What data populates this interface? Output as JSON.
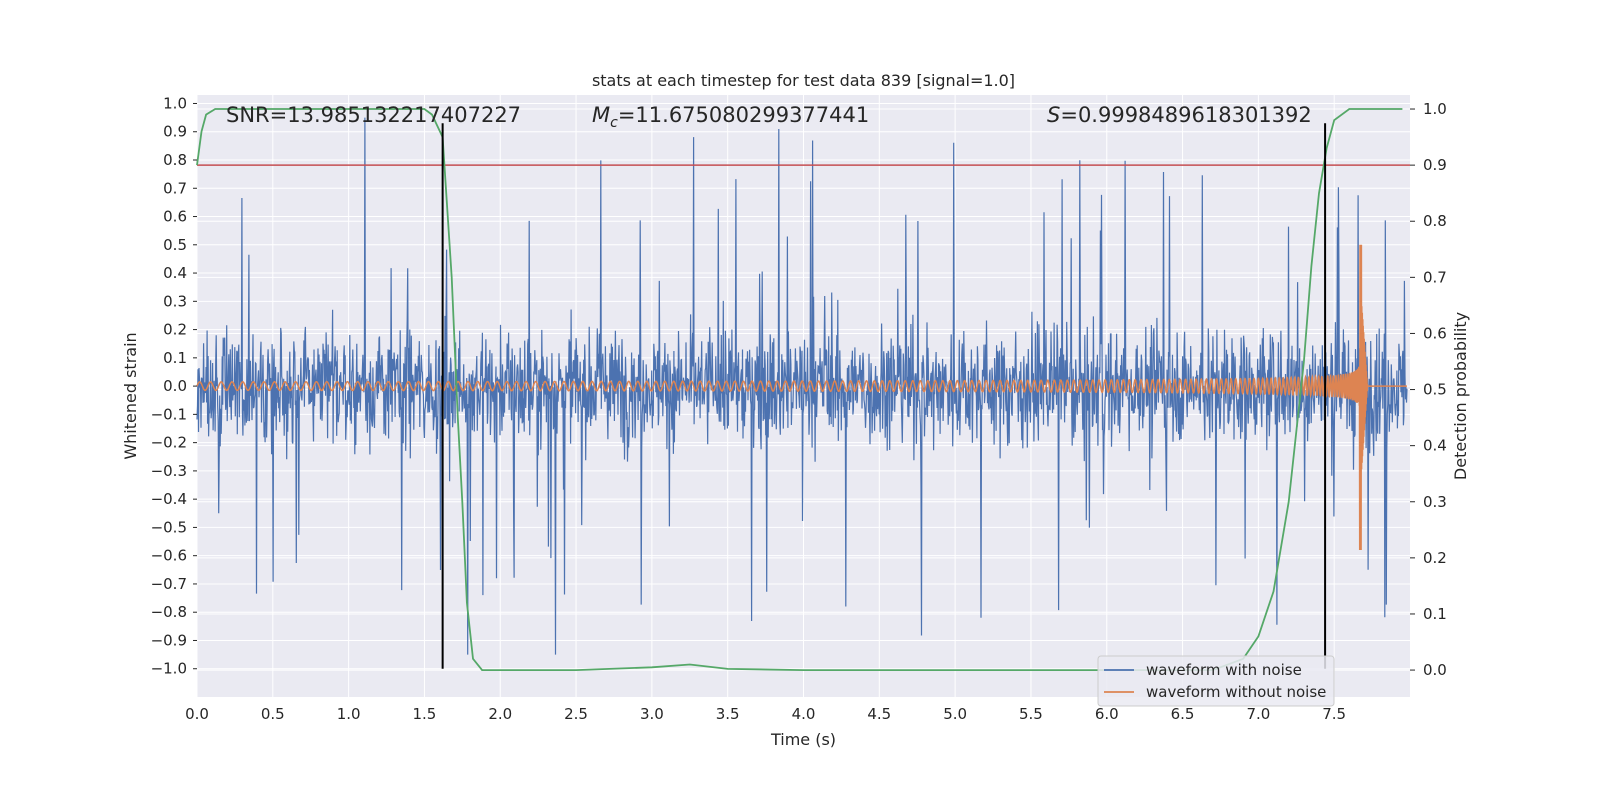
{
  "chart_data": {
    "type": "line",
    "title": "stats at each timestep for test data 839 [signal=1.0]",
    "xlabel": "Time (s)",
    "ylabel": "Whitened strain",
    "y2label": "Detection probability",
    "xlim": [
      0.0,
      8.0
    ],
    "ylim": [
      -1.1,
      1.03
    ],
    "y2lim": [
      -0.048,
      1.025
    ],
    "x_ticks": [
      0.0,
      0.5,
      1.0,
      1.5,
      2.0,
      2.5,
      3.0,
      3.5,
      4.0,
      4.5,
      5.0,
      5.5,
      6.0,
      6.5,
      7.0,
      7.5
    ],
    "x_tick_labels": [
      "0.0",
      "0.5",
      "1.0",
      "1.5",
      "2.0",
      "2.5",
      "3.0",
      "3.5",
      "4.0",
      "4.5",
      "5.0",
      "5.5",
      "6.0",
      "6.5",
      "7.0",
      "7.5"
    ],
    "y_ticks": [
      -1.0,
      -0.9,
      -0.8,
      -0.7,
      -0.6,
      -0.5,
      -0.4,
      -0.3,
      -0.2,
      -0.1,
      0.0,
      0.1,
      0.2,
      0.3,
      0.4,
      0.5,
      0.6,
      0.7,
      0.8,
      0.9,
      1.0
    ],
    "y_tick_labels": [
      "−1.0",
      "−0.9",
      "−0.8",
      "−0.7",
      "−0.6",
      "−0.5",
      "−0.4",
      "−0.3",
      "−0.2",
      "−0.1",
      "0.0",
      "0.1",
      "0.2",
      "0.3",
      "0.4",
      "0.5",
      "0.6",
      "0.7",
      "0.8",
      "0.9",
      "1.0"
    ],
    "y2_ticks": [
      0.0,
      0.1,
      0.2,
      0.3,
      0.4,
      0.5,
      0.6,
      0.7,
      0.8,
      0.9,
      1.0
    ],
    "y2_tick_labels": [
      "0.0",
      "0.1",
      "0.2",
      "0.3",
      "0.4",
      "0.5",
      "0.6",
      "0.7",
      "0.8",
      "0.9",
      "1.0"
    ],
    "grid": true,
    "legend_position": "bottom-right",
    "annotations": {
      "snr": "SNR=13.985132217407227",
      "mc_symbol": "M",
      "mc_sub": "c",
      "mc_value": "=11.675080299377441",
      "s_symbol": "S",
      "s_value": "=0.9998489618301392"
    },
    "series": [
      {
        "name": "waveform with noise",
        "color": "#4c72b0",
        "axis": "left",
        "kind": "noise_strain",
        "typical_envelope": 0.35,
        "max_abs": 0.95
      },
      {
        "name": "waveform without noise",
        "color": "#dd8452",
        "axis": "left",
        "kind": "chirp",
        "amplitude_start": 0.015,
        "peak_time": 7.68,
        "peak_values": [
          0.5,
          -0.58
        ],
        "ringdown_end": 7.72
      },
      {
        "color": "#55a868",
        "axis": "right",
        "kind": "probability",
        "x": [
          0.0,
          0.03,
          0.06,
          0.12,
          0.3,
          0.6,
          1.0,
          1.3,
          1.5,
          1.55,
          1.62,
          1.68,
          1.72,
          1.75,
          1.78,
          1.82,
          1.88,
          2.0,
          2.5,
          3.0,
          3.25,
          3.5,
          4.0,
          5.0,
          6.0,
          6.7,
          6.9,
          7.0,
          7.1,
          7.2,
          7.3,
          7.35,
          7.4,
          7.45,
          7.5,
          7.6,
          7.75,
          7.95
        ],
        "y": [
          0.9,
          0.96,
          0.99,
          1.0,
          1.0,
          1.0,
          1.0,
          1.0,
          1.0,
          0.99,
          0.95,
          0.7,
          0.45,
          0.3,
          0.12,
          0.02,
          0.0,
          0.0,
          0.0,
          0.005,
          0.01,
          0.002,
          0.0,
          0.0,
          0.0,
          0.0,
          0.02,
          0.06,
          0.14,
          0.3,
          0.55,
          0.72,
          0.85,
          0.93,
          0.98,
          1.0,
          1.0,
          1.0
        ]
      },
      {
        "color": "#c44e52",
        "axis": "right",
        "kind": "threshold",
        "value": 0.9
      },
      {
        "color": "#000000",
        "axis": "left",
        "kind": "vline",
        "x": 1.62,
        "y_range": [
          -1.0,
          0.93
        ]
      },
      {
        "color": "#000000",
        "axis": "left",
        "kind": "vline",
        "x": 7.44,
        "y_range": [
          -1.0,
          0.93
        ]
      }
    ],
    "colors": {
      "plot_bg": "#eaeaf2",
      "grid": "#ffffff",
      "text": "#262626"
    }
  }
}
